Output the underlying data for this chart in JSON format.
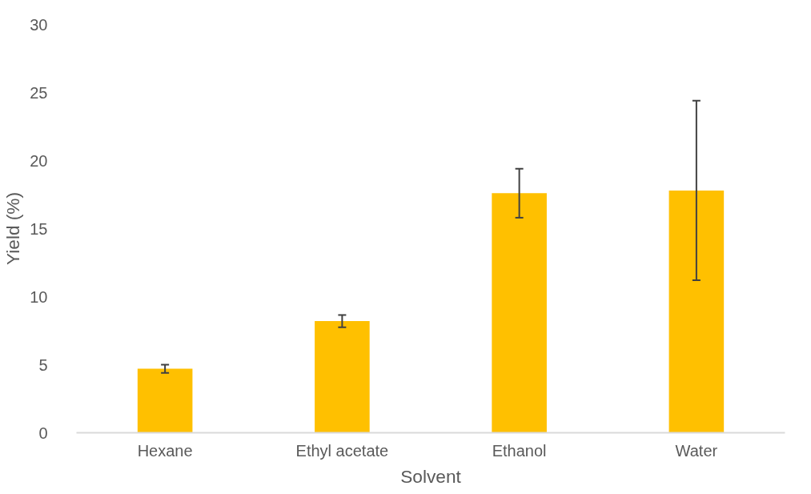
{
  "chart_data": {
    "type": "bar",
    "xlabel": "Solvent",
    "ylabel": "Yield (%)",
    "categories": [
      "Hexane",
      "Ethyl acetate",
      "Ethanol",
      "Water"
    ],
    "values": [
      4.7,
      8.2,
      17.6,
      17.8
    ],
    "errors": [
      0.3,
      0.45,
      1.8,
      6.6
    ],
    "color": "#ffc000",
    "ylim": [
      0,
      30
    ],
    "yticks": [
      0,
      5,
      10,
      15,
      20,
      25,
      30
    ],
    "grid": false
  }
}
